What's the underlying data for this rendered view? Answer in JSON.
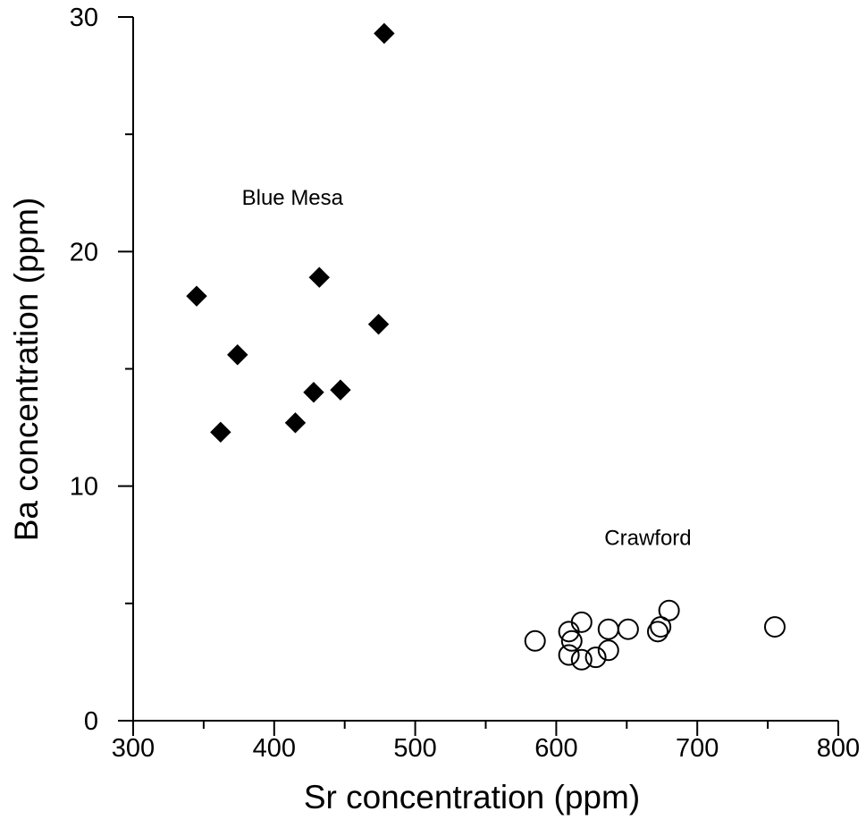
{
  "chart_data": {
    "type": "scatter",
    "xlabel": "Sr concentration (ppm)",
    "ylabel": "Ba concentration (ppm)",
    "xlim": [
      300,
      800
    ],
    "ylim": [
      0,
      30
    ],
    "x_major_ticks": [
      300,
      400,
      500,
      600,
      700,
      800
    ],
    "x_minor_ticks": [
      350,
      450,
      550,
      650,
      750
    ],
    "y_major_ticks": [
      0,
      10,
      20,
      30
    ],
    "y_minor_ticks": [
      5,
      15,
      25
    ],
    "x_tick_labels": [
      "300",
      "400",
      "500",
      "600",
      "700",
      "800"
    ],
    "y_tick_labels": [
      "0",
      "10",
      "20",
      "30"
    ],
    "grid": false,
    "legend": "none",
    "series": [
      {
        "name": "Blue Mesa",
        "marker": "filled-diamond",
        "color": "#000000",
        "points": [
          [
            478,
            29.3
          ],
          [
            345,
            18.1
          ],
          [
            432,
            18.9
          ],
          [
            474,
            16.9
          ],
          [
            374,
            15.6
          ],
          [
            428,
            14.0
          ],
          [
            447,
            14.1
          ],
          [
            415,
            12.7
          ],
          [
            362,
            12.3
          ]
        ]
      },
      {
        "name": "Crawford",
        "marker": "open-circle",
        "color": "#000000",
        "points": [
          [
            585,
            3.4
          ],
          [
            609,
            3.8
          ],
          [
            611,
            3.4
          ],
          [
            618,
            4.2
          ],
          [
            609,
            2.8
          ],
          [
            618,
            2.6
          ],
          [
            628,
            2.7
          ],
          [
            637,
            3.0
          ],
          [
            637,
            3.9
          ],
          [
            651,
            3.9
          ],
          [
            672,
            3.8
          ],
          [
            674,
            4.0
          ],
          [
            680,
            4.7
          ],
          [
            755,
            4.0
          ]
        ]
      }
    ],
    "annotations": [
      {
        "text": "Blue Mesa",
        "x": 413,
        "y": 22.0
      },
      {
        "text": "Crawford",
        "x": 665,
        "y": 7.5
      }
    ]
  }
}
